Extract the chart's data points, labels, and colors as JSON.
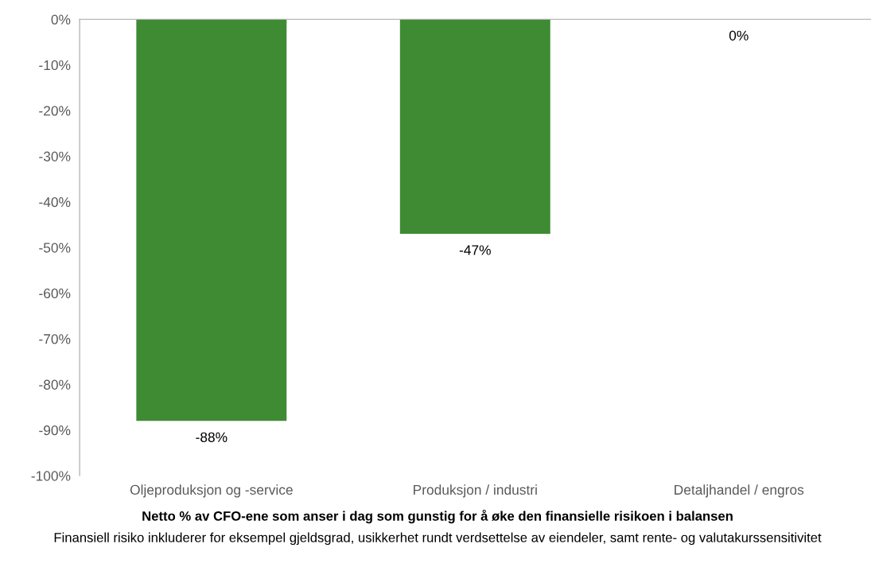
{
  "chart_data": {
    "type": "bar",
    "categories": [
      "Oljeproduksjon og -service",
      "Produksjon / industri",
      "Detaljhandel / engros"
    ],
    "values": [
      -88,
      -47,
      0
    ],
    "value_labels": [
      "-88%",
      "-47%",
      "0%"
    ],
    "color": "#3e8b33",
    "xlabel": "Netto % av CFO-ene som anser i dag som gunstig for å øke den finansielle risikoen i balansen",
    "annotations": [
      "Finansiell risiko inkluderer for eksempel gjeldsgrad, usikkerhet rundt verdsettelse av eiendeler, samt rente- og valutakurssensitivitet"
    ],
    "ylim": [
      -100,
      0
    ],
    "yticks": [
      {
        "value": 0,
        "label": "0%"
      },
      {
        "value": -10,
        "label": "-10%"
      },
      {
        "value": -20,
        "label": "-20%"
      },
      {
        "value": -30,
        "label": "-30%"
      },
      {
        "value": -40,
        "label": "-40%"
      },
      {
        "value": -50,
        "label": "-50%"
      },
      {
        "value": -60,
        "label": "-60%"
      },
      {
        "value": -70,
        "label": "-70%"
      },
      {
        "value": -80,
        "label": "-80%"
      },
      {
        "value": -90,
        "label": "-90%"
      },
      {
        "value": -100,
        "label": "-100%"
      }
    ],
    "grid": false,
    "legend": false
  }
}
